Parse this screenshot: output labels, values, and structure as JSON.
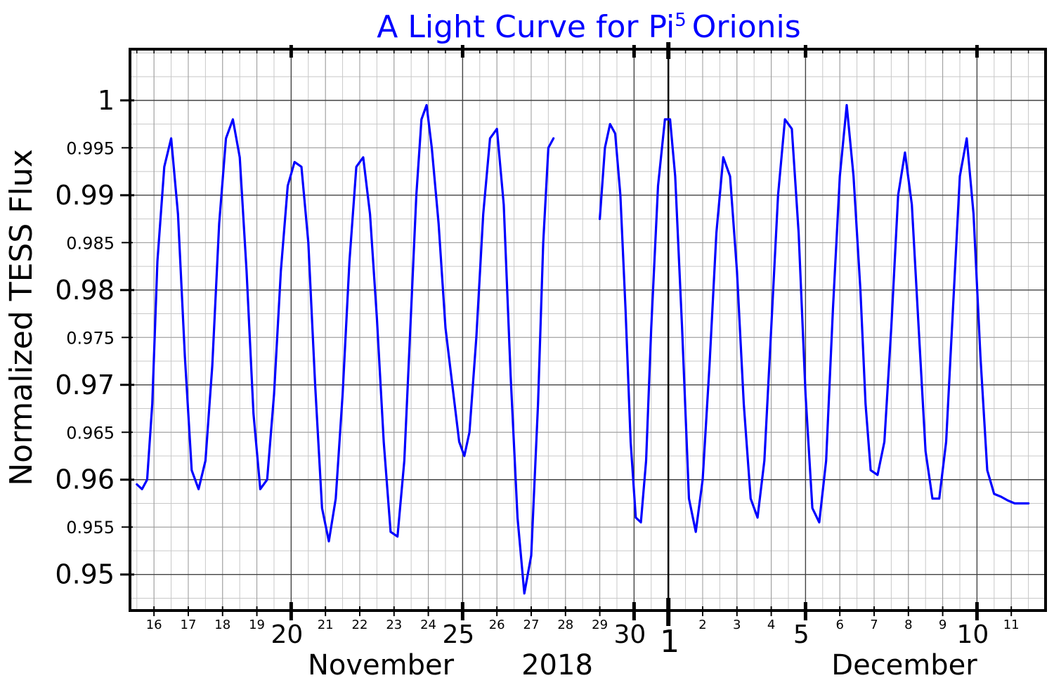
{
  "chart_data": {
    "type": "line",
    "title": "A Light Curve for Pi",
    "title_superscript": "5",
    "title_suffix": "Orionis",
    "ylabel": "Normalized TESS Flux",
    "xlabel_left": "November",
    "xlabel_center": "2018",
    "xlabel_right": "December",
    "ylim": [
      0.9462,
      1.0054
    ],
    "xlim": [
      15.3,
      42.0
    ],
    "x_units": "day of November 2018 (Dec 1 = 31)",
    "y_major_ticks": [
      {
        "value": 1.0,
        "label": "1"
      },
      {
        "value": 0.99,
        "label": "0.99"
      },
      {
        "value": 0.98,
        "label": "0.98"
      },
      {
        "value": 0.97,
        "label": "0.97"
      },
      {
        "value": 0.96,
        "label": "0.96"
      },
      {
        "value": 0.95,
        "label": "0.95"
      }
    ],
    "y_minor_ticks": [
      {
        "value": 0.995,
        "label": "0.995"
      },
      {
        "value": 0.985,
        "label": "0.985"
      },
      {
        "value": 0.975,
        "label": "0.975"
      },
      {
        "value": 0.965,
        "label": "0.965"
      },
      {
        "value": 0.955,
        "label": "0.955"
      }
    ],
    "x_day_ticks": [
      {
        "value": 16,
        "label": "16"
      },
      {
        "value": 17,
        "label": "17"
      },
      {
        "value": 18,
        "label": "18"
      },
      {
        "value": 19,
        "label": "19"
      },
      {
        "value": 21,
        "label": "21"
      },
      {
        "value": 22,
        "label": "22"
      },
      {
        "value": 23,
        "label": "23"
      },
      {
        "value": 24,
        "label": "24"
      },
      {
        "value": 26,
        "label": "26"
      },
      {
        "value": 27,
        "label": "27"
      },
      {
        "value": 28,
        "label": "28"
      },
      {
        "value": 29,
        "label": "29"
      },
      {
        "value": 32,
        "label": "2"
      },
      {
        "value": 33,
        "label": "3"
      },
      {
        "value": 34,
        "label": "4"
      },
      {
        "value": 36,
        "label": "6"
      },
      {
        "value": 37,
        "label": "7"
      },
      {
        "value": 38,
        "label": "8"
      },
      {
        "value": 39,
        "label": "9"
      },
      {
        "value": 41,
        "label": "11"
      }
    ],
    "x_major_ticks": [
      {
        "value": 20,
        "label": "20"
      },
      {
        "value": 25,
        "label": "25"
      },
      {
        "value": 30,
        "label": "30"
      },
      {
        "value": 35,
        "label": "5"
      },
      {
        "value": 40,
        "label": "10"
      }
    ],
    "x_month_ticks": [
      {
        "value": 31,
        "label": "1"
      }
    ],
    "line_color": "#0000ff",
    "grid": true,
    "series": [
      {
        "name": "Pi5 Orionis",
        "segments": [
          {
            "x": [
              15.5,
              15.65,
              15.8,
              15.95,
              16.1,
              16.3,
              16.5,
              16.7,
              16.9,
              17.1,
              17.3,
              17.5,
              17.7,
              17.9,
              18.1,
              18.3,
              18.5,
              18.7,
              18.9,
              19.1,
              19.3,
              19.5,
              19.7,
              19.9,
              20.1,
              20.3,
              20.5,
              20.7,
              20.9,
              21.1,
              21.3,
              21.5,
              21.7,
              21.9,
              22.1,
              22.3,
              22.5,
              22.7,
              22.9,
              23.1,
              23.3,
              23.5,
              23.65,
              23.8,
              23.95,
              24.1,
              24.3,
              24.5,
              24.7,
              24.9,
              25.05,
              25.2,
              25.4,
              25.6,
              25.8,
              26.0,
              26.2,
              26.4,
              26.6,
              26.8,
              27.0,
              27.2,
              27.35,
              27.5,
              27.65
            ],
            "y": [
              0.9595,
              0.959,
              0.96,
              0.968,
              0.983,
              0.993,
              0.996,
              0.988,
              0.973,
              0.961,
              0.959,
              0.962,
              0.972,
              0.987,
              0.996,
              0.998,
              0.994,
              0.982,
              0.967,
              0.959,
              0.96,
              0.969,
              0.982,
              0.991,
              0.9935,
              0.993,
              0.985,
              0.97,
              0.957,
              0.9535,
              0.958,
              0.969,
              0.983,
              0.993,
              0.994,
              0.988,
              0.977,
              0.964,
              0.9545,
              0.954,
              0.962,
              0.978,
              0.99,
              0.998,
              0.9995,
              0.995,
              0.987,
              0.976,
              0.97,
              0.964,
              0.9625,
              0.965,
              0.975,
              0.988,
              0.996,
              0.997,
              0.989,
              0.971,
              0.956,
              0.948,
              0.952,
              0.968,
              0.985,
              0.995,
              0.996
            ]
          },
          {
            "x": [
              29.0,
              29.15,
              29.3,
              29.45,
              29.6,
              29.75,
              29.9,
              30.05,
              30.2,
              30.35,
              30.5,
              30.7,
              30.9,
              31.05,
              31.2,
              31.4,
              31.6,
              31.8,
              32.0,
              32.2,
              32.4,
              32.6,
              32.8,
              33.0,
              33.2,
              33.4,
              33.6,
              33.8,
              34.0,
              34.2,
              34.4,
              34.6,
              34.8,
              35.0,
              35.2,
              35.4,
              35.6,
              35.8,
              36.0,
              36.2,
              36.4,
              36.6,
              36.75,
              36.9,
              37.1,
              37.3,
              37.5,
              37.7,
              37.9,
              38.1,
              38.3,
              38.5,
              38.7,
              38.9,
              39.1,
              39.3,
              39.5,
              39.7,
              39.9,
              40.1,
              40.3,
              40.5,
              40.7,
              40.9,
              41.1,
              41.3,
              41.5
            ],
            "y": [
              0.9875,
              0.995,
              0.9975,
              0.9965,
              0.99,
              0.978,
              0.964,
              0.956,
              0.9555,
              0.962,
              0.976,
              0.991,
              0.998,
              0.998,
              0.992,
              0.976,
              0.958,
              0.9545,
              0.96,
              0.972,
              0.986,
              0.994,
              0.992,
              0.982,
              0.968,
              0.958,
              0.956,
              0.962,
              0.976,
              0.99,
              0.998,
              0.997,
              0.986,
              0.969,
              0.957,
              0.9555,
              0.962,
              0.978,
              0.992,
              0.9995,
              0.992,
              0.98,
              0.968,
              0.961,
              0.9605,
              0.964,
              0.976,
              0.99,
              0.9945,
              0.989,
              0.976,
              0.963,
              0.958,
              0.958,
              0.964,
              0.978,
              0.992,
              0.996,
              0.988,
              0.973,
              0.961,
              0.9585,
              0.9582,
              0.9578,
              0.9575,
              0.9575,
              0.9575
            ]
          }
        ]
      }
    ]
  }
}
